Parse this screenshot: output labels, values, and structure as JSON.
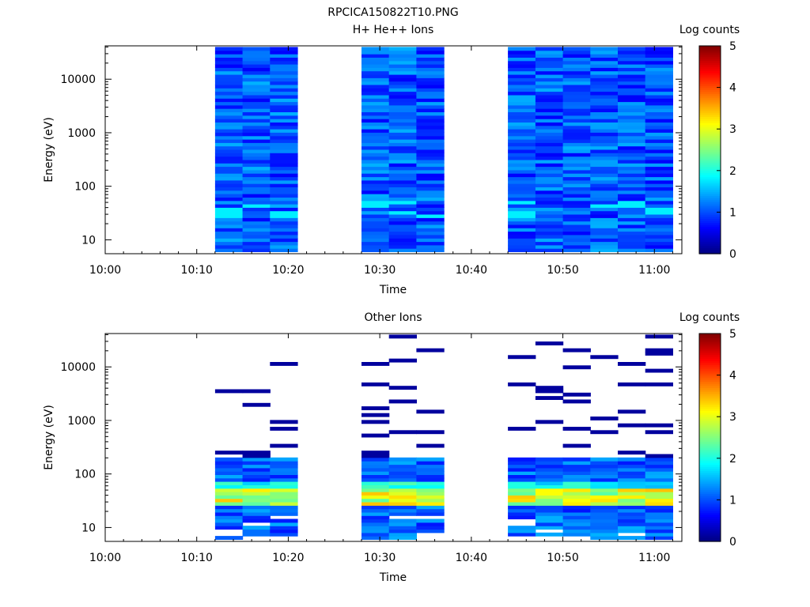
{
  "figure": {
    "title": "RPCICA150822T10.PNG"
  },
  "colormap": [
    "#000080",
    "#0000ff",
    "#0080ff",
    "#00ffff",
    "#80ff80",
    "#ffff00",
    "#ff8000",
    "#ff0000",
    "#800000"
  ],
  "chart_data": [
    {
      "type": "heatmap",
      "title": "H+ He++ Ions",
      "xlabel": "Time",
      "ylabel": "Energy (eV)",
      "x_ticks": [
        "10:00",
        "10:10",
        "10:20",
        "10:30",
        "10:40",
        "10:50",
        "11:00"
      ],
      "y_ticks": [
        "10",
        "100",
        "1000",
        "10000"
      ],
      "y_scale": "log",
      "ylim": [
        5.5,
        42000
      ],
      "xlim_minutes": [
        0,
        63
      ],
      "grid": false,
      "colorbar": {
        "label": "Log counts",
        "ticks": [
          "0",
          "1",
          "2",
          "3",
          "4",
          "5"
        ],
        "range": [
          0,
          5
        ]
      },
      "data_blocks_minutes": [
        [
          12,
          21
        ],
        [
          28,
          37
        ],
        [
          44,
          63
        ]
      ],
      "summary_levels": [
        {
          "energy_range_eV": [
            6,
            10000
          ],
          "log_counts_approx": 1.0
        }
      ]
    },
    {
      "type": "heatmap",
      "title": "Other Ions",
      "xlabel": "Time",
      "ylabel": "Energy (eV)",
      "x_ticks": [
        "10:00",
        "10:10",
        "10:20",
        "10:30",
        "10:40",
        "10:50",
        "11:00"
      ],
      "y_ticks": [
        "10",
        "100",
        "1000",
        "10000"
      ],
      "y_scale": "log",
      "ylim": [
        5.5,
        42000
      ],
      "xlim_minutes": [
        0,
        63
      ],
      "grid": false,
      "colorbar": {
        "label": "Log counts",
        "ticks": [
          "0",
          "1",
          "2",
          "3",
          "4",
          "5"
        ],
        "range": [
          0,
          5
        ]
      },
      "data_blocks_minutes": [
        [
          12,
          21
        ],
        [
          28,
          37
        ],
        [
          44,
          63
        ]
      ],
      "summary_levels": [
        {
          "energy_range_eV": [
            30,
            50
          ],
          "log_counts_approx": 3.0
        },
        {
          "energy_range_eV": [
            6,
            200
          ],
          "log_counts_approx": 1.0
        },
        {
          "energy_range_eV": [
            200,
            30000
          ],
          "log_counts_approx": 0.2,
          "note": "sparse lines"
        }
      ]
    }
  ]
}
